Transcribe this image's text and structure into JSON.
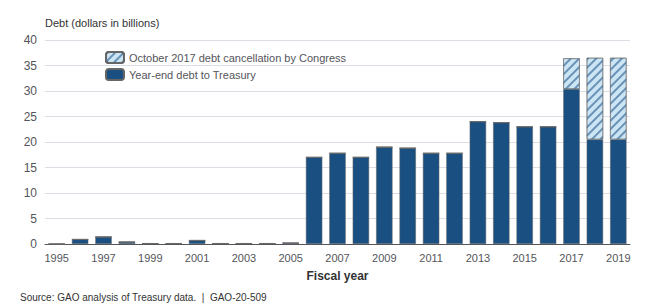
{
  "chart_data": {
    "type": "bar",
    "ylabel": "Debt (dollars in billions)",
    "xlabel": "Fiscal year",
    "annotations": [
      "Source: GAO analysis of Treasury data.  |  GAO-20-509"
    ],
    "categories": [
      "1995",
      null,
      "1997",
      null,
      "1999",
      null,
      "2001",
      null,
      "2003",
      null,
      "2005",
      null,
      "2007",
      null,
      "2009",
      null,
      "2011",
      null,
      "2013",
      null,
      "2015",
      null,
      "2017",
      null,
      "2019"
    ],
    "series": [
      {
        "name": "Year-end debt to Treasury",
        "color": "#1a4f82",
        "values": [
          0.0,
          0.9,
          1.4,
          0.4,
          0.1,
          0.1,
          0.7,
          0.1,
          0.1,
          0.1,
          0.2,
          17.0,
          17.8,
          17.0,
          19.0,
          18.8,
          17.8,
          17.8,
          24.0,
          23.8,
          23.0,
          23.0,
          30.4,
          20.5,
          20.5
        ]
      },
      {
        "name": "October 2017 debt cancellation by Congress",
        "color": "#cce5f5",
        "values": [
          0,
          0,
          0,
          0,
          0,
          0,
          0,
          0,
          0,
          0,
          0,
          0,
          0,
          0,
          0,
          0,
          0,
          0,
          0,
          0,
          0,
          0,
          6.0,
          16.0,
          16.0
        ]
      }
    ],
    "stacked": true,
    "ylim": [
      0,
      40
    ],
    "yticks": [
      0,
      5,
      10,
      15,
      20,
      25,
      30,
      35,
      40
    ],
    "grid": true,
    "legend": "upper left"
  }
}
